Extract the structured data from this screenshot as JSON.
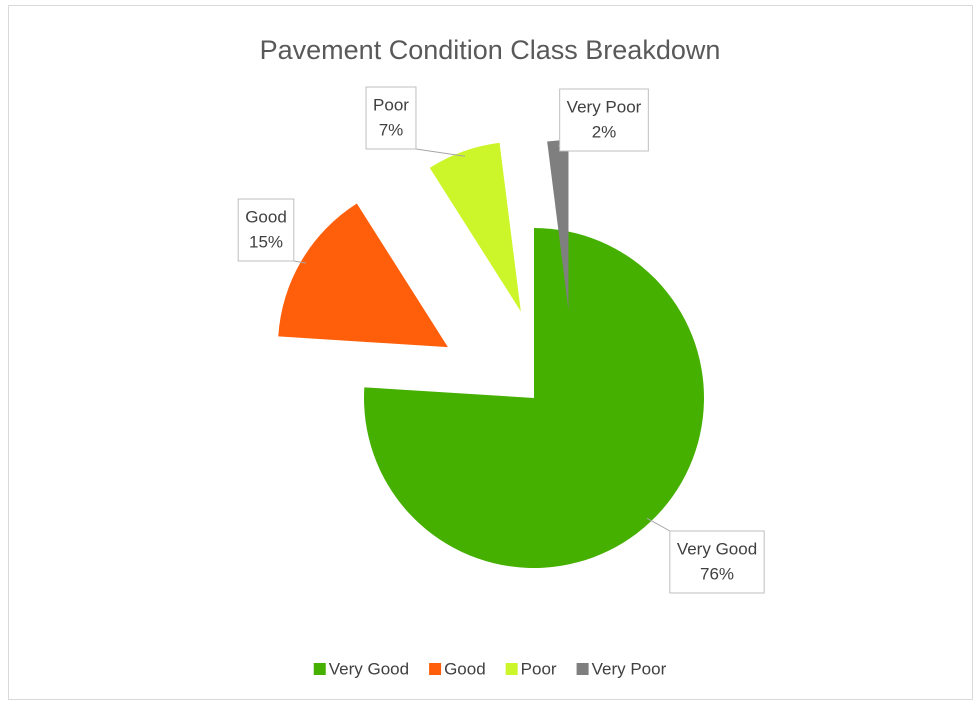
{
  "chart_data": {
    "type": "pie",
    "title": "Pavement Condition Class Breakdown",
    "categories": [
      "Very Good",
      "Good",
      "Poor",
      "Very Poor"
    ],
    "values": [
      76,
      15,
      7,
      2
    ],
    "value_labels": [
      "76%",
      "15%",
      "7%",
      "2%"
    ],
    "colors": [
      "#46b000",
      "#ff5f0a",
      "#ccf52a",
      "#7f7f7f"
    ],
    "legend": "bottom"
  }
}
